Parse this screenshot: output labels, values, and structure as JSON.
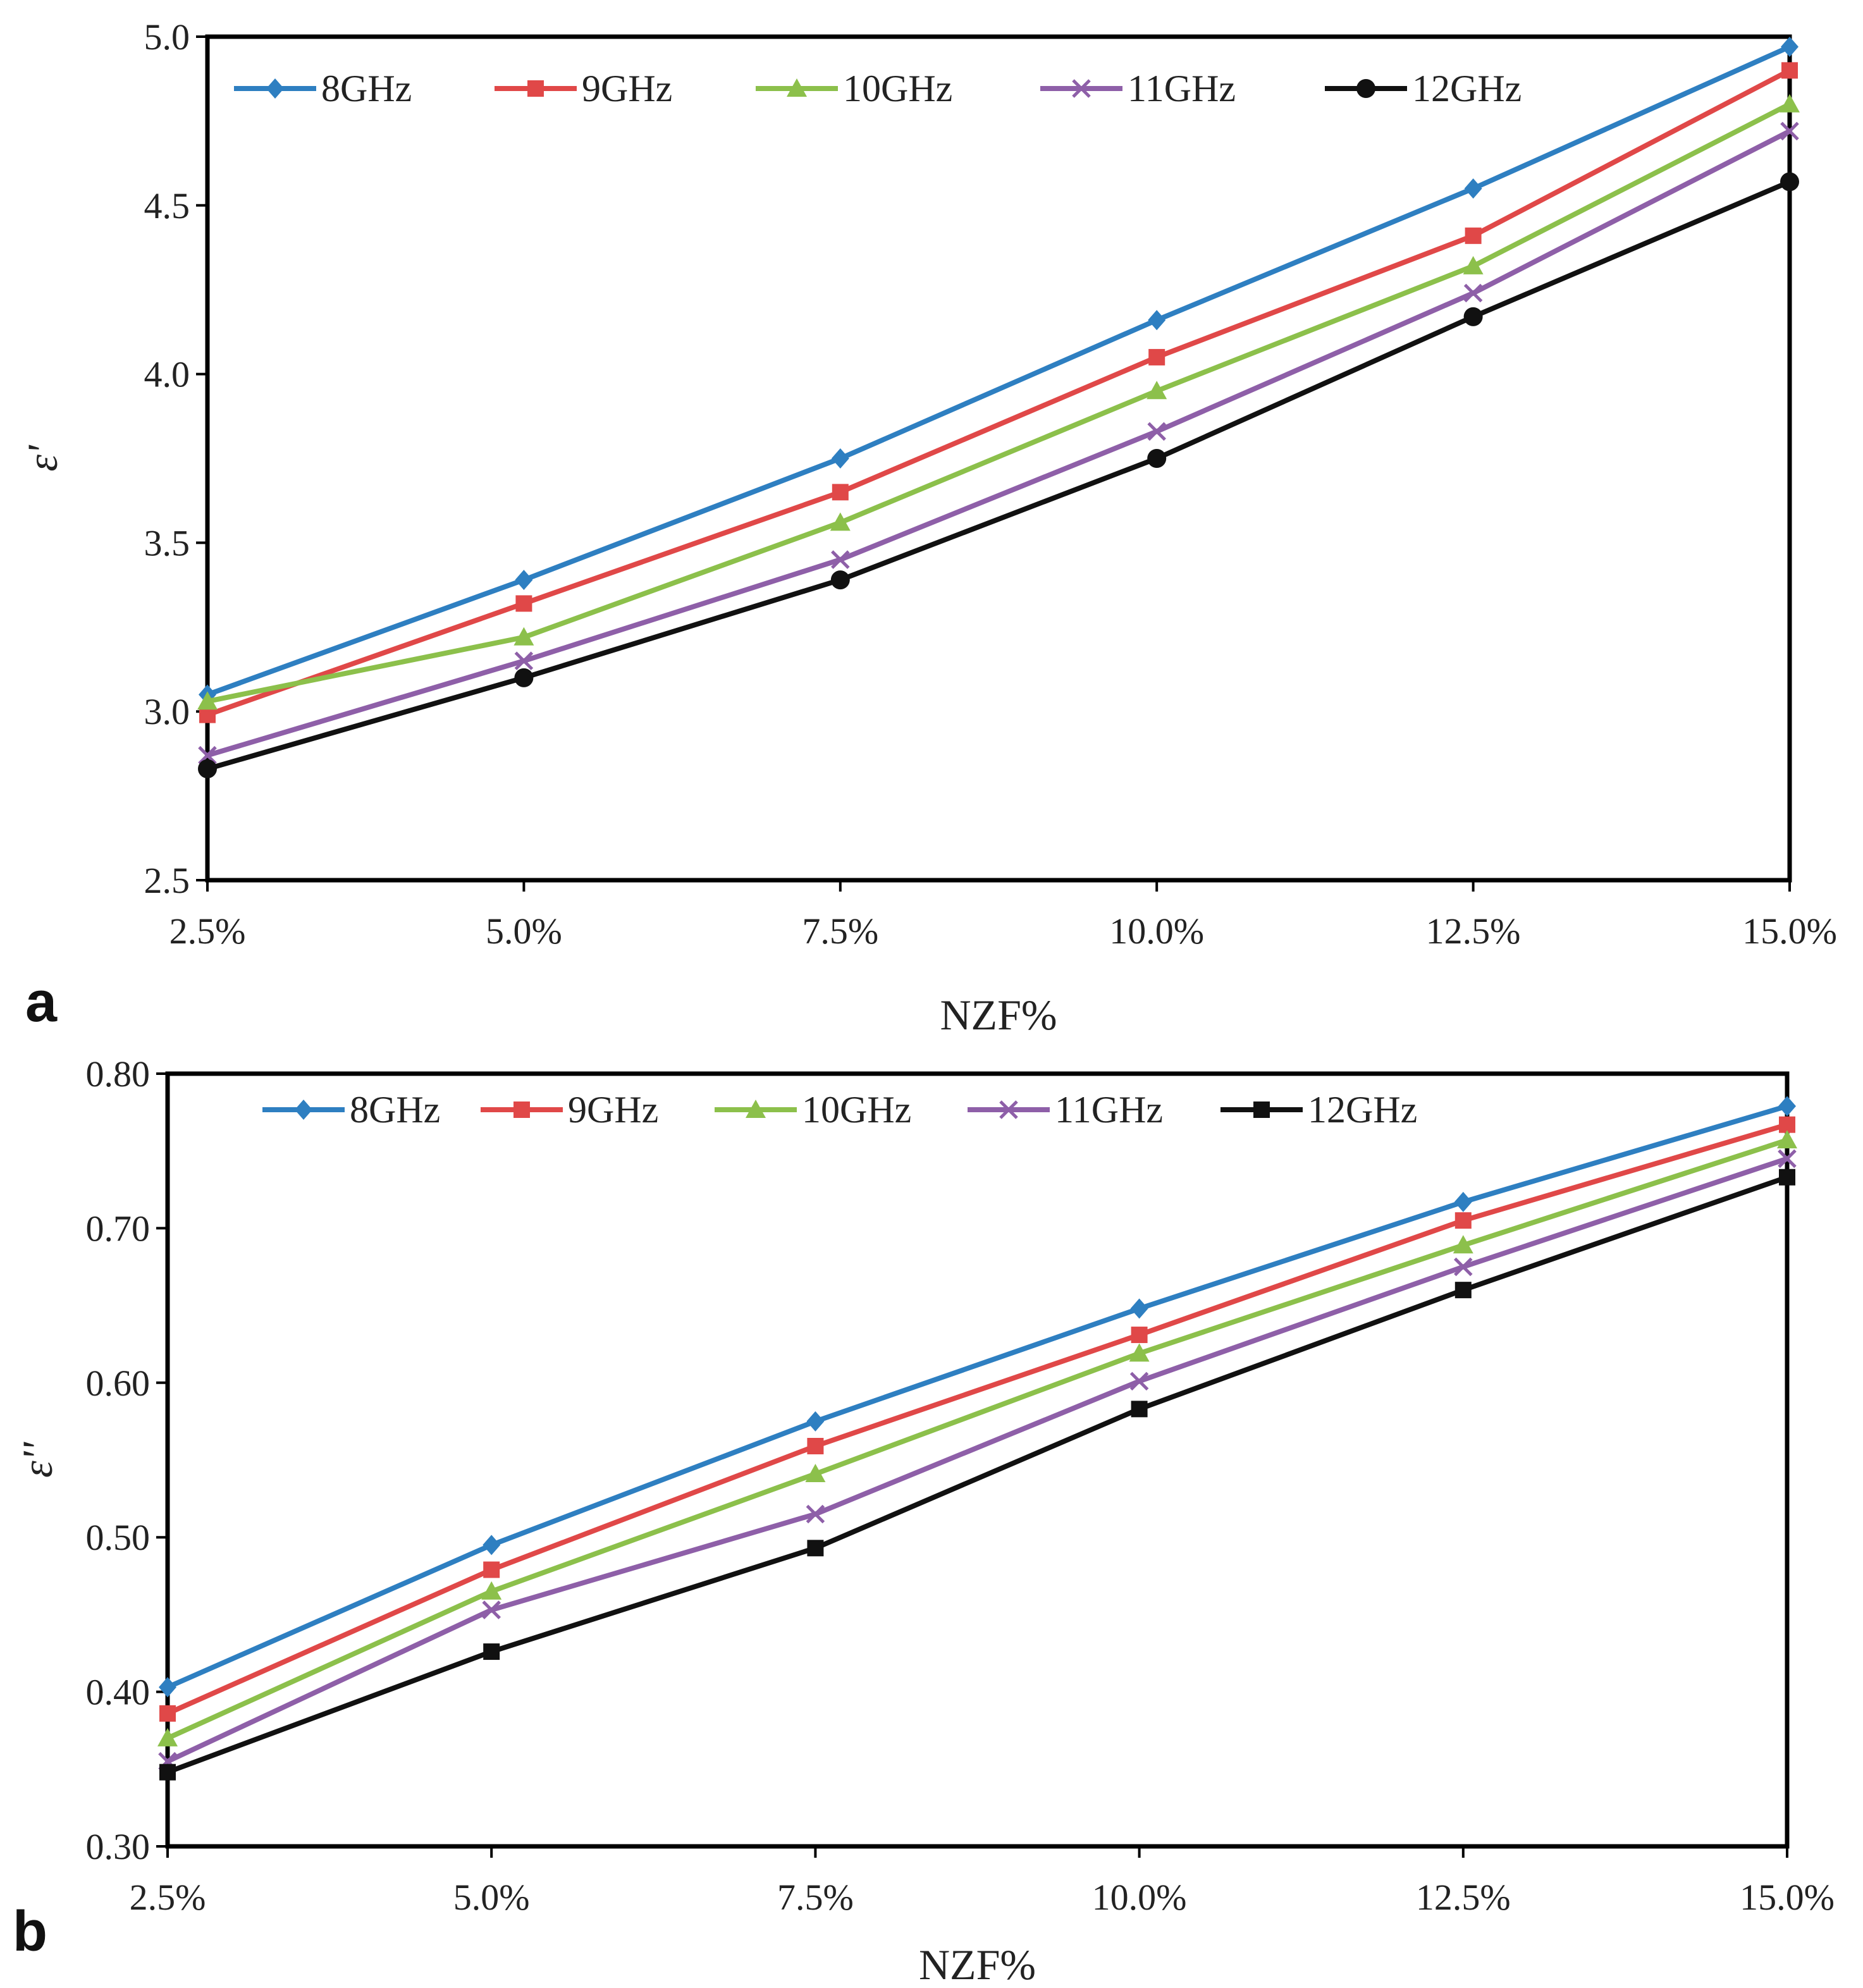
{
  "chart_data": [
    {
      "type": "line",
      "panel_label": "a",
      "xlabel": "NZF%",
      "ylabel": "ε'",
      "categories": [
        "2.5%",
        "5.0%",
        "7.5%",
        "10.0%",
        "12.5%",
        "15.0%"
      ],
      "ylim": [
        2.5,
        5.0
      ],
      "yticks": [
        "2.5",
        "3.0",
        "3.5",
        "4.0",
        "4.5",
        "5.0"
      ],
      "grid": false,
      "legend_position": "top",
      "series": [
        {
          "name": "8GHz",
          "color": "#2e7fc1",
          "marker": "diamond",
          "values": [
            3.05,
            3.39,
            3.75,
            4.16,
            4.55,
            4.97
          ]
        },
        {
          "name": "9GHz",
          "color": "#e04848",
          "marker": "square",
          "values": [
            2.99,
            3.32,
            3.65,
            4.05,
            4.41,
            4.9
          ]
        },
        {
          "name": "10GHz",
          "color": "#8cc04b",
          "marker": "triangle",
          "values": [
            3.03,
            3.22,
            3.56,
            3.95,
            4.32,
            4.8
          ]
        },
        {
          "name": "11GHz",
          "color": "#8e5fa8",
          "marker": "x",
          "values": [
            2.87,
            3.15,
            3.45,
            3.83,
            4.24,
            4.72
          ]
        },
        {
          "name": "12GHz",
          "color": "#111111",
          "marker": "circle",
          "values": [
            2.83,
            3.1,
            3.39,
            3.75,
            4.17,
            4.57
          ]
        }
      ]
    },
    {
      "type": "line",
      "panel_label": "b",
      "xlabel": "NZF%",
      "ylabel": "ε''",
      "categories": [
        "2.5%",
        "5.0%",
        "7.5%",
        "10.0%",
        "12.5%",
        "15.0%"
      ],
      "ylim": [
        0.3,
        0.8
      ],
      "yticks": [
        "0.30",
        "0.40",
        "0.50",
        "0.60",
        "0.70",
        "0.80"
      ],
      "grid": false,
      "legend_position": "top",
      "series": [
        {
          "name": "8GHz",
          "color": "#2e7fc1",
          "marker": "diamond",
          "values": [
            0.403,
            0.495,
            0.575,
            0.648,
            0.717,
            0.779
          ]
        },
        {
          "name": "9GHz",
          "color": "#e04848",
          "marker": "square",
          "values": [
            0.386,
            0.479,
            0.559,
            0.631,
            0.705,
            0.767
          ]
        },
        {
          "name": "10GHz",
          "color": "#8cc04b",
          "marker": "triangle",
          "values": [
            0.37,
            0.465,
            0.541,
            0.619,
            0.689,
            0.757
          ]
        },
        {
          "name": "11GHz",
          "color": "#8e5fa8",
          "marker": "x",
          "values": [
            0.355,
            0.453,
            0.515,
            0.601,
            0.675,
            0.745
          ]
        },
        {
          "name": "12GHz",
          "color": "#111111",
          "marker": "square",
          "values": [
            0.348,
            0.426,
            0.493,
            0.583,
            0.66,
            0.733
          ]
        }
      ]
    }
  ]
}
